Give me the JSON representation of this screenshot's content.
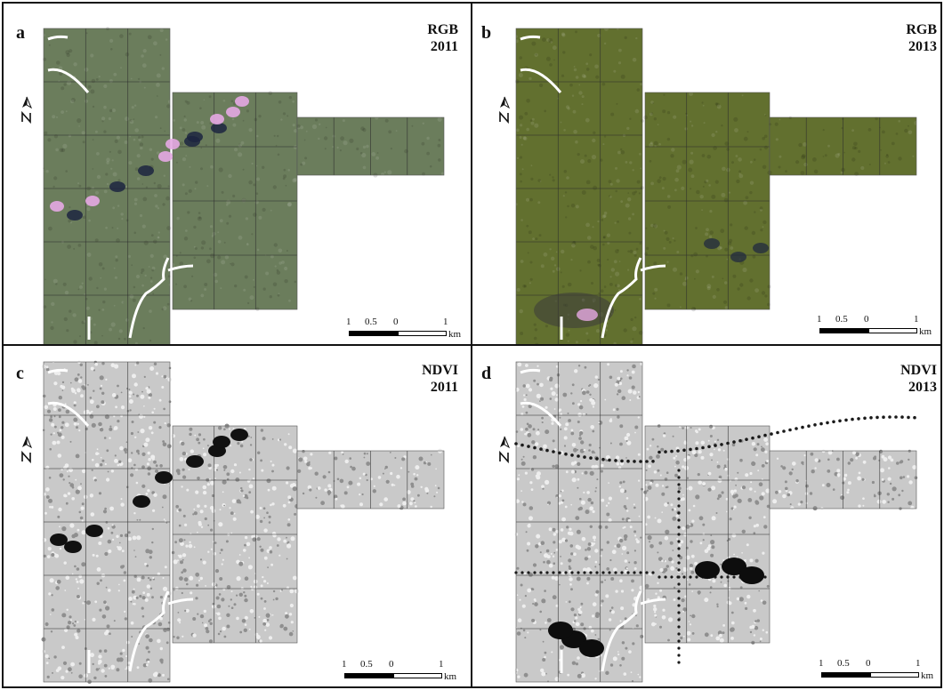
{
  "panels": [
    {
      "letter": "a",
      "title_line1": "RGB",
      "title_line2": "2011",
      "style": "rgb2011"
    },
    {
      "letter": "b",
      "title_line1": "RGB",
      "title_line2": "2013",
      "style": "rgb2013"
    },
    {
      "letter": "c",
      "title_line1": "NDVI",
      "title_line2": "2011",
      "style": "ndvi2011"
    },
    {
      "letter": "d",
      "title_line1": "NDVI",
      "title_line2": "2013",
      "style": "ndvi2013"
    }
  ],
  "scale_bar": {
    "labels": [
      "1",
      "0.5",
      "0",
      "1"
    ],
    "unit": "km"
  },
  "colors": {
    "rgb2011": "#6b7d5c",
    "rgb2013": "#62702f",
    "ndvi": "#c9c9c9",
    "cloud": "#e6a9e3",
    "shadow": "#1c2540",
    "stream": "#ffffff",
    "grid": "#2e2e2e"
  }
}
